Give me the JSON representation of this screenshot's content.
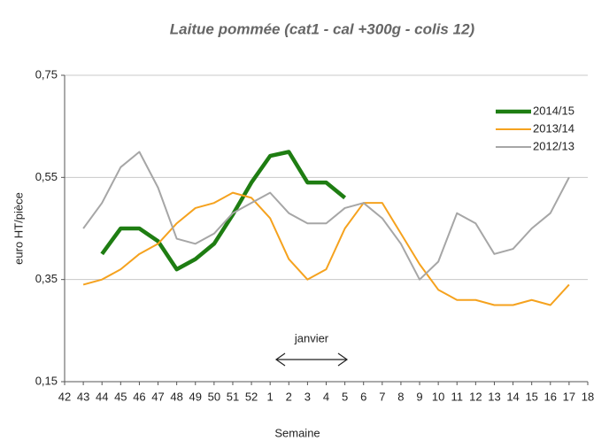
{
  "chart_data": {
    "type": "line",
    "title": "Laitue pommée (cat1 - cal +300g - colis 12)",
    "xlabel": "Semaine",
    "ylabel": "euro HT/pièce",
    "annotation": "janvier",
    "categories": [
      "42",
      "43",
      "44",
      "45",
      "46",
      "47",
      "48",
      "49",
      "50",
      "51",
      "52",
      "1",
      "2",
      "3",
      "4",
      "5",
      "6",
      "7",
      "8",
      "9",
      "10",
      "11",
      "12",
      "13",
      "14",
      "15",
      "16",
      "17",
      "18"
    ],
    "series": [
      {
        "name": "2014/15",
        "color": "#1e7d12",
        "values": [
          null,
          null,
          0.4,
          0.45,
          0.45,
          0.425,
          0.37,
          0.39,
          0.42,
          0.477,
          0.54,
          0.592,
          0.6,
          0.54,
          0.54,
          0.51,
          null,
          null,
          null,
          null,
          null,
          null,
          null,
          null,
          null,
          null,
          null,
          null,
          null
        ]
      },
      {
        "name": "2013/14",
        "color": "#f5a21e",
        "values": [
          null,
          0.34,
          0.35,
          0.37,
          0.4,
          0.42,
          0.46,
          0.49,
          0.5,
          0.52,
          0.51,
          0.47,
          0.39,
          0.35,
          0.37,
          0.45,
          0.5,
          0.5,
          0.44,
          0.38,
          0.33,
          0.31,
          0.31,
          0.3,
          0.3,
          0.31,
          0.3,
          0.34,
          null
        ]
      },
      {
        "name": "2012/13",
        "color": "#a6a6a6",
        "values": [
          null,
          0.45,
          0.5,
          0.57,
          0.6,
          0.53,
          0.43,
          0.42,
          0.44,
          0.48,
          0.5,
          0.52,
          0.48,
          0.46,
          0.46,
          0.49,
          0.5,
          0.47,
          0.42,
          0.35,
          0.385,
          0.48,
          0.46,
          0.4,
          0.41,
          0.45,
          0.48,
          0.55,
          null
        ]
      }
    ],
    "ylim": [
      0.15,
      0.75
    ],
    "yticks": [
      {
        "value": 0.15,
        "label": "0,15"
      },
      {
        "value": 0.35,
        "label": "0,35"
      },
      {
        "value": 0.55,
        "label": "0,55"
      },
      {
        "value": 0.75,
        "label": "0,75"
      }
    ],
    "grid": true,
    "legend": "upper right"
  }
}
